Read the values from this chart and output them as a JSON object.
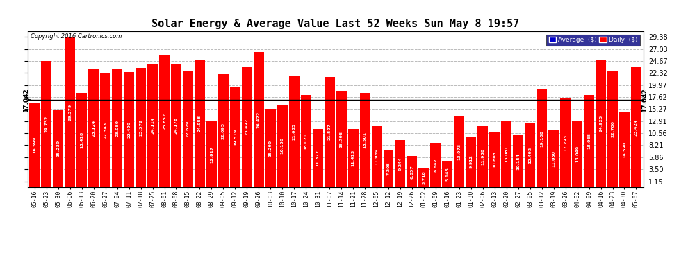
{
  "title": "Solar Energy & Average Value Last 52 Weeks Sun May 8 19:57",
  "copyright": "Copyright 2016 Cartronics.com",
  "bar_color": "#ff0000",
  "average_line_color": "#000080",
  "average_value": 17.042,
  "average_label": "17.042",
  "background_color": "#ffffff",
  "grid_color": "#bbbbbb",
  "ylabel_right": [
    "1.15",
    "3.50",
    "5.86",
    "8.21",
    "10.56",
    "12.91",
    "15.27",
    "17.62",
    "19.97",
    "22.32",
    "24.67",
    "27.03",
    "29.38"
  ],
  "ylim": [
    0,
    30.5
  ],
  "yticks": [
    1.15,
    3.5,
    5.86,
    8.21,
    10.56,
    12.91,
    15.27,
    17.62,
    19.97,
    22.32,
    24.67,
    27.03,
    29.38
  ],
  "legend_average_color": "#0000cc",
  "legend_daily_color": "#ff0000",
  "legend_bg_color": "#000080",
  "categories": [
    "05-16",
    "05-23",
    "05-30",
    "06-06",
    "06-13",
    "06-20",
    "06-27",
    "07-04",
    "07-11",
    "07-18",
    "07-25",
    "08-01",
    "08-08",
    "08-15",
    "08-22",
    "08-29",
    "09-05",
    "09-12",
    "09-19",
    "09-26",
    "10-03",
    "10-10",
    "10-17",
    "10-24",
    "10-31",
    "11-07",
    "11-14",
    "11-21",
    "11-28",
    "12-05",
    "12-12",
    "12-19",
    "12-26",
    "01-02",
    "01-09",
    "01-16",
    "01-23",
    "01-30",
    "02-06",
    "02-13",
    "02-20",
    "02-27",
    "03-05",
    "03-12",
    "03-19",
    "03-26",
    "04-02",
    "04-09",
    "04-16",
    "04-23",
    "04-30",
    "05-07"
  ],
  "values": [
    16.599,
    24.732,
    15.239,
    29.379,
    18.418,
    23.124,
    22.343,
    23.089,
    22.49,
    23.372,
    24.114,
    25.852,
    24.178,
    22.679,
    24.958,
    12.817,
    22.095,
    19.519,
    23.492,
    26.422,
    15.299,
    16.15,
    21.685,
    18.02,
    11.377,
    21.597,
    18.795,
    11.413,
    18.501,
    11.969,
    7.208,
    9.244,
    6.057,
    3.718,
    8.647,
    5.145,
    13.973,
    9.912,
    11.938,
    10.803,
    13.081,
    10.154,
    12.492,
    19.108,
    11.05,
    17.293,
    13.049,
    18.065,
    24.925,
    22.7,
    14.59,
    23.424
  ]
}
